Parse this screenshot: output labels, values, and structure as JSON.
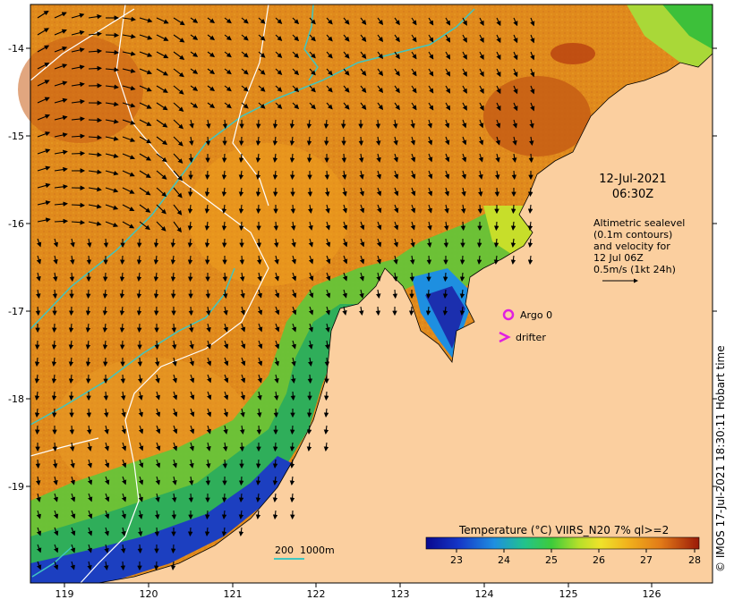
{
  "map": {
    "date_line1": "12-Jul-2021",
    "date_line2": "06:30Z",
    "altimetry_note": [
      "Altimetric sealevel",
      "(0.1m contours)",
      "and velocity for",
      "12 Jul 06Z",
      "0.5m/s (1kt 24h)"
    ],
    "legend_argo": "Argo 0",
    "legend_drifter": "drifter",
    "scale_label": "200  1000m",
    "colorbar_title": "Temperature (°C) VIIRS_N20 7% ql>=2",
    "colorbar_ticks": [
      "23",
      "24",
      "25",
      "26",
      "27",
      "28"
    ],
    "lon_ticks": [
      "119",
      "120",
      "121",
      "122",
      "123",
      "124",
      "125",
      "126"
    ],
    "lat_ticks": [
      "-14",
      "-15",
      "-16",
      "-17",
      "-18",
      "-19"
    ],
    "copyright": "© IMOS 17-Jul-2021 18:30:11 Hobart time",
    "colors": {
      "land": "#fbcf9f",
      "sst_warm": "#d8751e",
      "sst_mid": "#e8a516",
      "sst_cool": "#2db34a",
      "sst_cold": "#1b2fae",
      "isobath": "#3fc6c0",
      "argo_drifter": "#e020e0"
    }
  }
}
